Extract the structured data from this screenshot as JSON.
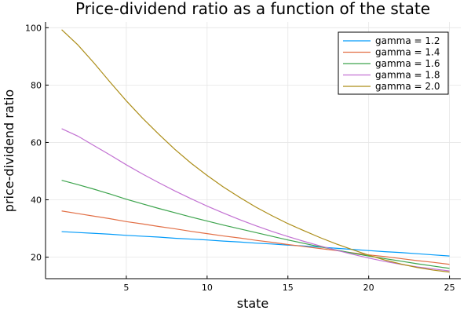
{
  "chart_data": {
    "type": "line",
    "title": "Price-dividend ratio as a function of the state",
    "xlabel": "state",
    "ylabel": "price-dividend ratio",
    "xlim": [
      0,
      25.7
    ],
    "ylim": [
      12.5,
      102
    ],
    "xticks": [
      5,
      10,
      15,
      20,
      25
    ],
    "yticks": [
      20,
      40,
      60,
      80,
      100
    ],
    "grid": true,
    "legend": "top-right",
    "x": [
      1,
      2,
      3,
      4,
      5,
      6,
      7,
      8,
      9,
      10,
      11,
      12,
      13,
      14,
      15,
      16,
      17,
      18,
      19,
      20,
      21,
      22,
      23,
      24,
      25
    ],
    "series": [
      {
        "name": "gamma = 1.2",
        "color": "#009af9",
        "values": [
          28.9,
          28.6,
          28.3,
          28.0,
          27.6,
          27.3,
          27.0,
          26.6,
          26.3,
          26.0,
          25.6,
          25.3,
          24.9,
          24.6,
          24.2,
          23.9,
          23.5,
          23.1,
          22.7,
          22.3,
          21.9,
          21.6,
          21.2,
          20.8,
          20.4
        ]
      },
      {
        "name": "gamma = 1.4",
        "color": "#e26f46",
        "values": [
          36.1,
          35.2,
          34.3,
          33.4,
          32.4,
          31.6,
          30.7,
          29.9,
          29.0,
          28.2,
          27.4,
          26.7,
          25.9,
          25.2,
          24.4,
          23.7,
          23.0,
          22.3,
          21.5,
          20.8,
          20.2,
          19.5,
          18.8,
          18.2,
          17.5
        ]
      },
      {
        "name": "gamma = 1.6",
        "color": "#3da44d",
        "values": [
          46.8,
          45.3,
          43.7,
          42.0,
          40.2,
          38.6,
          37.0,
          35.5,
          34.0,
          32.6,
          31.2,
          29.9,
          28.6,
          27.3,
          26.0,
          24.8,
          23.6,
          22.5,
          21.4,
          20.4,
          19.5,
          18.6,
          17.7,
          16.9,
          16.1
        ]
      },
      {
        "name": "gamma = 1.8",
        "color": "#c271d2",
        "values": [
          64.8,
          62.2,
          58.9,
          55.6,
          52.2,
          49.0,
          46.0,
          43.1,
          40.4,
          37.8,
          35.4,
          33.1,
          31.0,
          29.0,
          27.2,
          25.5,
          23.9,
          22.4,
          21.0,
          19.7,
          18.5,
          17.5,
          16.6,
          15.9,
          15.2
        ]
      },
      {
        "name": "gamma = 2.0",
        "color": "#ac8d18",
        "values": [
          99.3,
          94.0,
          87.7,
          81.0,
          74.5,
          68.5,
          62.9,
          57.6,
          52.8,
          48.5,
          44.5,
          40.9,
          37.5,
          34.5,
          31.7,
          29.2,
          26.8,
          24.6,
          22.6,
          20.7,
          19.0,
          17.6,
          16.4,
          15.5,
          14.8
        ]
      }
    ]
  }
}
